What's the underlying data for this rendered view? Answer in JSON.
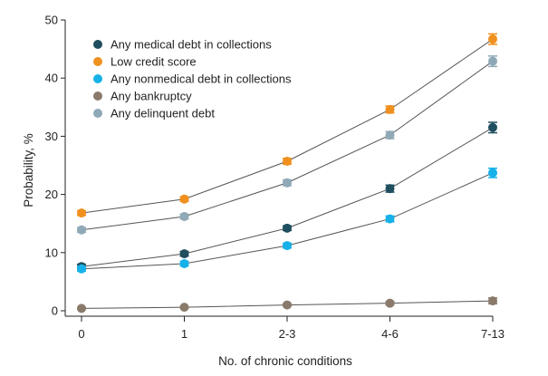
{
  "chart_data": {
    "type": "line",
    "title": "",
    "xlabel": "No. of chronic conditions",
    "ylabel": "Probability, %",
    "categories": [
      "0",
      "1",
      "2-3",
      "4-6",
      "7-13"
    ],
    "ylim": [
      0,
      50
    ],
    "yticks": [
      "0",
      "10",
      "20",
      "30",
      "40",
      "50"
    ],
    "grid": false,
    "legend_position": "top-left",
    "series": [
      {
        "name": "Any medical debt in collections",
        "color": "#1f4e5e",
        "values": [
          7.6,
          9.8,
          14.2,
          21.0,
          31.5
        ],
        "error": [
          0.4,
          0.4,
          0.4,
          0.6,
          0.9
        ]
      },
      {
        "name": "Low credit score",
        "color": "#f0901e",
        "values": [
          16.8,
          19.2,
          25.7,
          34.6,
          46.7
        ],
        "error": [
          0.4,
          0.4,
          0.5,
          0.6,
          0.9
        ]
      },
      {
        "name": "Any nonmedical debt in collections",
        "color": "#16b1e8",
        "values": [
          7.2,
          8.1,
          11.2,
          15.8,
          23.7
        ],
        "error": [
          0.4,
          0.4,
          0.4,
          0.5,
          0.8
        ]
      },
      {
        "name": "Any bankruptcy",
        "color": "#8a7a6b",
        "values": [
          0.4,
          0.6,
          1.0,
          1.3,
          1.7
        ],
        "error": [
          0.1,
          0.1,
          0.2,
          0.3,
          0.5
        ]
      },
      {
        "name": "Any delinquent debt",
        "color": "#8fa9b7",
        "values": [
          13.9,
          16.2,
          22.0,
          30.2,
          42.9
        ],
        "error": [
          0.4,
          0.4,
          0.5,
          0.6,
          0.9
        ]
      }
    ]
  }
}
